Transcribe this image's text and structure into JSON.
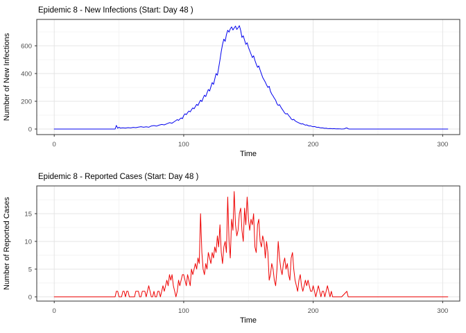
{
  "figure": {
    "background": "#FFFFFF",
    "description": "Two stacked ggplot-style epidemic time series plots"
  },
  "theme": {
    "grid_major": "#E4E4E4",
    "grid_minor": "#F2F2F2",
    "panel_border": "#333333",
    "tick_color": "#333333",
    "tick_label_color": "#4D4D4D",
    "title_color": "#000000"
  },
  "chart_data": [
    {
      "type": "line",
      "title": "Epidemic 8 - New Infections (Start: Day 48 )",
      "xlabel": "Time",
      "ylabel": "Number of New Infections",
      "line_color": "#0000EE",
      "legend": "none",
      "grid": true,
      "x_ticks": [
        0,
        100,
        200,
        300
      ],
      "x_minor_ticks": [
        50,
        150,
        250
      ],
      "y_ticks": [
        0,
        200,
        400,
        600
      ],
      "y_minor_ticks": [
        100,
        300,
        500,
        700
      ],
      "x_domain": [
        -13.5,
        313.2
      ],
      "y_domain": [
        -40,
        790
      ],
      "points": [
        [
          0,
          0
        ],
        [
          8,
          0
        ],
        [
          16,
          0
        ],
        [
          24,
          0
        ],
        [
          32,
          0
        ],
        [
          40,
          0
        ],
        [
          45,
          0
        ],
        [
          47,
          0
        ],
        [
          48,
          26
        ],
        [
          49,
          6
        ],
        [
          50,
          13
        ],
        [
          51,
          7
        ],
        [
          53,
          9
        ],
        [
          55,
          7
        ],
        [
          57,
          10
        ],
        [
          59,
          8
        ],
        [
          61,
          12
        ],
        [
          63,
          10
        ],
        [
          65,
          14
        ],
        [
          67,
          17
        ],
        [
          69,
          13
        ],
        [
          71,
          16
        ],
        [
          73,
          13
        ],
        [
          75,
          22
        ],
        [
          77,
          25
        ],
        [
          79,
          21
        ],
        [
          81,
          28
        ],
        [
          83,
          33
        ],
        [
          85,
          30
        ],
        [
          87,
          38
        ],
        [
          89,
          46
        ],
        [
          91,
          42
        ],
        [
          93,
          55
        ],
        [
          95,
          68
        ],
        [
          96,
          62
        ],
        [
          97,
          72
        ],
        [
          98,
          80
        ],
        [
          99,
          75
        ],
        [
          100,
          97
        ],
        [
          101,
          110
        ],
        [
          102,
          104
        ],
        [
          103,
          118
        ],
        [
          104,
          130
        ],
        [
          105,
          124
        ],
        [
          106,
          139
        ],
        [
          107,
          152
        ],
        [
          108,
          146
        ],
        [
          109,
          162
        ],
        [
          110,
          178
        ],
        [
          111,
          170
        ],
        [
          112,
          190
        ],
        [
          113,
          208
        ],
        [
          114,
          198
        ],
        [
          115,
          222
        ],
        [
          116,
          244
        ],
        [
          117,
          234
        ],
        [
          118,
          260
        ],
        [
          119,
          285
        ],
        [
          120,
          274
        ],
        [
          121,
          304
        ],
        [
          122,
          335
        ],
        [
          123,
          322
        ],
        [
          124,
          360
        ],
        [
          125,
          400
        ],
        [
          126,
          388
        ],
        [
          127,
          440
        ],
        [
          128,
          498
        ],
        [
          129,
          560
        ],
        [
          130,
          610
        ],
        [
          131,
          648
        ],
        [
          132,
          632
        ],
        [
          133,
          680
        ],
        [
          134,
          712
        ],
        [
          135,
          698
        ],
        [
          136,
          722
        ],
        [
          137,
          736
        ],
        [
          138,
          714
        ],
        [
          139,
          728
        ],
        [
          140,
          742
        ],
        [
          141,
          718
        ],
        [
          142,
          730
        ],
        [
          143,
          745
        ],
        [
          144,
          710
        ],
        [
          145,
          660
        ],
        [
          146,
          672
        ],
        [
          147,
          640
        ],
        [
          148,
          610
        ],
        [
          149,
          622
        ],
        [
          150,
          588
        ],
        [
          151,
          565
        ],
        [
          152,
          540
        ],
        [
          153,
          515
        ],
        [
          154,
          528
        ],
        [
          155,
          495
        ],
        [
          156,
          468
        ],
        [
          157,
          445
        ],
        [
          158,
          455
        ],
        [
          159,
          425
        ],
        [
          160,
          398
        ],
        [
          161,
          372
        ],
        [
          162,
          355
        ],
        [
          163,
          338
        ],
        [
          164,
          318
        ],
        [
          165,
          300
        ],
        [
          166,
          308
        ],
        [
          167,
          272
        ],
        [
          168,
          252
        ],
        [
          169,
          238
        ],
        [
          170,
          222
        ],
        [
          171,
          208
        ],
        [
          172,
          182
        ],
        [
          173,
          170
        ],
        [
          174,
          176
        ],
        [
          175,
          158
        ],
        [
          176,
          144
        ],
        [
          177,
          130
        ],
        [
          178,
          115
        ],
        [
          179,
          108
        ],
        [
          180,
          112
        ],
        [
          181,
          98
        ],
        [
          182,
          88
        ],
        [
          183,
          73
        ],
        [
          184,
          66
        ],
        [
          185,
          70
        ],
        [
          186,
          60
        ],
        [
          187,
          53
        ],
        [
          188,
          49
        ],
        [
          189,
          44
        ],
        [
          190,
          40
        ],
        [
          191,
          36
        ],
        [
          192,
          38
        ],
        [
          193,
          32
        ],
        [
          194,
          28
        ],
        [
          195,
          30
        ],
        [
          196,
          25
        ],
        [
          197,
          22
        ],
        [
          198,
          23
        ],
        [
          199,
          19
        ],
        [
          200,
          17
        ],
        [
          201,
          18
        ],
        [
          202,
          15
        ],
        [
          203,
          12
        ],
        [
          204,
          13
        ],
        [
          205,
          10
        ],
        [
          206,
          8
        ],
        [
          207,
          9
        ],
        [
          208,
          7
        ],
        [
          209,
          5
        ],
        [
          210,
          6
        ],
        [
          211,
          4
        ],
        [
          212,
          3
        ],
        [
          213,
          4
        ],
        [
          214,
          3
        ],
        [
          215,
          2
        ],
        [
          216,
          3
        ],
        [
          217,
          2
        ],
        [
          218,
          1
        ],
        [
          219,
          2
        ],
        [
          220,
          1
        ],
        [
          221,
          1
        ],
        [
          222,
          0
        ],
        [
          224,
          1
        ],
        [
          225,
          6
        ],
        [
          226,
          8
        ],
        [
          227,
          2
        ],
        [
          228,
          0
        ],
        [
          232,
          0
        ],
        [
          240,
          0
        ],
        [
          248,
          0
        ],
        [
          256,
          0
        ],
        [
          264,
          0
        ],
        [
          272,
          0
        ],
        [
          280,
          0
        ],
        [
          288,
          0
        ],
        [
          296,
          0
        ],
        [
          304,
          0
        ]
      ]
    },
    {
      "type": "line",
      "title": "Epidemic 8 - Reported Cases (Start: Day 48 )",
      "xlabel": "Time",
      "ylabel": "Number of Reported Cases",
      "line_color": "#EE0000",
      "legend": "none",
      "grid": true,
      "x_ticks": [
        0,
        100,
        200,
        300
      ],
      "x_minor_ticks": [
        50,
        150,
        250
      ],
      "y_ticks": [
        0,
        5,
        10,
        15
      ],
      "y_minor_ticks": [
        2.5,
        7.5,
        12.5,
        17.5
      ],
      "x_domain": [
        -13.5,
        313.2
      ],
      "y_domain": [
        -0.76,
        20
      ],
      "points": [
        [
          0,
          0
        ],
        [
          10,
          0
        ],
        [
          20,
          0
        ],
        [
          30,
          0
        ],
        [
          40,
          0
        ],
        [
          45,
          0
        ],
        [
          47,
          0
        ],
        [
          48,
          1
        ],
        [
          49,
          1
        ],
        [
          50,
          0
        ],
        [
          51,
          0
        ],
        [
          52,
          0
        ],
        [
          53,
          1
        ],
        [
          54,
          1
        ],
        [
          55,
          0
        ],
        [
          56,
          1
        ],
        [
          57,
          1
        ],
        [
          58,
          0
        ],
        [
          59,
          0
        ],
        [
          60,
          0
        ],
        [
          61,
          0
        ],
        [
          62,
          0
        ],
        [
          63,
          1
        ],
        [
          64,
          1
        ],
        [
          65,
          1
        ],
        [
          66,
          0
        ],
        [
          67,
          0
        ],
        [
          68,
          1
        ],
        [
          69,
          1
        ],
        [
          70,
          1
        ],
        [
          71,
          0
        ],
        [
          72,
          1
        ],
        [
          73,
          2
        ],
        [
          74,
          1
        ],
        [
          75,
          0
        ],
        [
          76,
          0
        ],
        [
          77,
          1
        ],
        [
          78,
          0
        ],
        [
          79,
          0
        ],
        [
          80,
          1
        ],
        [
          81,
          1
        ],
        [
          82,
          0
        ],
        [
          83,
          1
        ],
        [
          84,
          2
        ],
        [
          85,
          1
        ],
        [
          86,
          2
        ],
        [
          87,
          3
        ],
        [
          88,
          2
        ],
        [
          89,
          4
        ],
        [
          90,
          3
        ],
        [
          91,
          4
        ],
        [
          92,
          2
        ],
        [
          93,
          1
        ],
        [
          94,
          0
        ],
        [
          95,
          1
        ],
        [
          96,
          3
        ],
        [
          97,
          2
        ],
        [
          98,
          3
        ],
        [
          99,
          4
        ],
        [
          100,
          4
        ],
        [
          101,
          3
        ],
        [
          102,
          2
        ],
        [
          103,
          4
        ],
        [
          104,
          3
        ],
        [
          105,
          2
        ],
        [
          106,
          5
        ],
        [
          107,
          4
        ],
        [
          108,
          5
        ],
        [
          109,
          6
        ],
        [
          110,
          5
        ],
        [
          111,
          7
        ],
        [
          112,
          6
        ],
        [
          113,
          15
        ],
        [
          114,
          8
        ],
        [
          115,
          5
        ],
        [
          116,
          4
        ],
        [
          117,
          6
        ],
        [
          118,
          5
        ],
        [
          119,
          8
        ],
        [
          120,
          7
        ],
        [
          121,
          6
        ],
        [
          122,
          8
        ],
        [
          123,
          7
        ],
        [
          124,
          9
        ],
        [
          125,
          8
        ],
        [
          126,
          11
        ],
        [
          127,
          9
        ],
        [
          128,
          13
        ],
        [
          129,
          8
        ],
        [
          130,
          6
        ],
        [
          131,
          9
        ],
        [
          132,
          10
        ],
        [
          133,
          8
        ],
        [
          134,
          18
        ],
        [
          135,
          10
        ],
        [
          136,
          7
        ],
        [
          137,
          14
        ],
        [
          138,
          12
        ],
        [
          139,
          19
        ],
        [
          140,
          13
        ],
        [
          141,
          11
        ],
        [
          142,
          12
        ],
        [
          143,
          15
        ],
        [
          144,
          16
        ],
        [
          145,
          12
        ],
        [
          146,
          10
        ],
        [
          147,
          16
        ],
        [
          148,
          13
        ],
        [
          149,
          18
        ],
        [
          150,
          14
        ],
        [
          151,
          12
        ],
        [
          152,
          14
        ],
        [
          153,
          13
        ],
        [
          154,
          15
        ],
        [
          155,
          9
        ],
        [
          156,
          8
        ],
        [
          157,
          13
        ],
        [
          158,
          14
        ],
        [
          159,
          10
        ],
        [
          160,
          9
        ],
        [
          161,
          11
        ],
        [
          162,
          10
        ],
        [
          163,
          7
        ],
        [
          164,
          10
        ],
        [
          165,
          8
        ],
        [
          166,
          3
        ],
        [
          167,
          4
        ],
        [
          168,
          6
        ],
        [
          169,
          5
        ],
        [
          170,
          3
        ],
        [
          171,
          2
        ],
        [
          172,
          5
        ],
        [
          173,
          10
        ],
        [
          174,
          7
        ],
        [
          175,
          5
        ],
        [
          176,
          4
        ],
        [
          177,
          6
        ],
        [
          178,
          7
        ],
        [
          179,
          5
        ],
        [
          180,
          6
        ],
        [
          181,
          4
        ],
        [
          182,
          3
        ],
        [
          183,
          7
        ],
        [
          184,
          8
        ],
        [
          185,
          5
        ],
        [
          186,
          3
        ],
        [
          187,
          2
        ],
        [
          188,
          1
        ],
        [
          189,
          3
        ],
        [
          190,
          4
        ],
        [
          191,
          2
        ],
        [
          192,
          1
        ],
        [
          193,
          2
        ],
        [
          194,
          3
        ],
        [
          195,
          2
        ],
        [
          196,
          3
        ],
        [
          197,
          2
        ],
        [
          198,
          1
        ],
        [
          199,
          1
        ],
        [
          200,
          2
        ],
        [
          201,
          1
        ],
        [
          202,
          0
        ],
        [
          203,
          1
        ],
        [
          204,
          2
        ],
        [
          205,
          1
        ],
        [
          206,
          0
        ],
        [
          207,
          1
        ],
        [
          208,
          1
        ],
        [
          209,
          0
        ],
        [
          210,
          1
        ],
        [
          211,
          2
        ],
        [
          212,
          1
        ],
        [
          213,
          0
        ],
        [
          214,
          1
        ],
        [
          215,
          0
        ],
        [
          218,
          0
        ],
        [
          222,
          0
        ],
        [
          226,
          1
        ],
        [
          227,
          0
        ],
        [
          232,
          0
        ],
        [
          240,
          0
        ],
        [
          248,
          0
        ],
        [
          256,
          0
        ],
        [
          264,
          0
        ],
        [
          272,
          0
        ],
        [
          280,
          0
        ],
        [
          288,
          0
        ],
        [
          296,
          0
        ],
        [
          304,
          0
        ]
      ]
    }
  ]
}
